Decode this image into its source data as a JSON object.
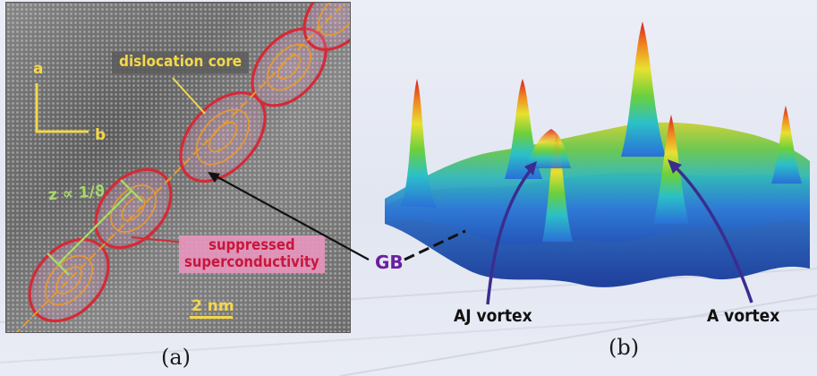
{
  "panel_a": {
    "axis_a": "a",
    "axis_b": "b",
    "dislocation_label": "dislocation core",
    "z_label": "z ∝ 1/ϑ",
    "suppressed_line1": "suppressed",
    "suppressed_line2": "superconductivity",
    "scale_label": "2 nm",
    "caption": "(a)"
  },
  "panel_b": {
    "gb_label": "GB",
    "aj_vortex_label": "AJ vortex",
    "a_vortex_label": "A vortex",
    "caption": "(b)"
  },
  "colors": {
    "label_yellow": "#f3d84a",
    "ellipse_red": "#d42a36",
    "gb_purple": "#6a1fa0",
    "arrow_blue": "#3b2d8f"
  }
}
